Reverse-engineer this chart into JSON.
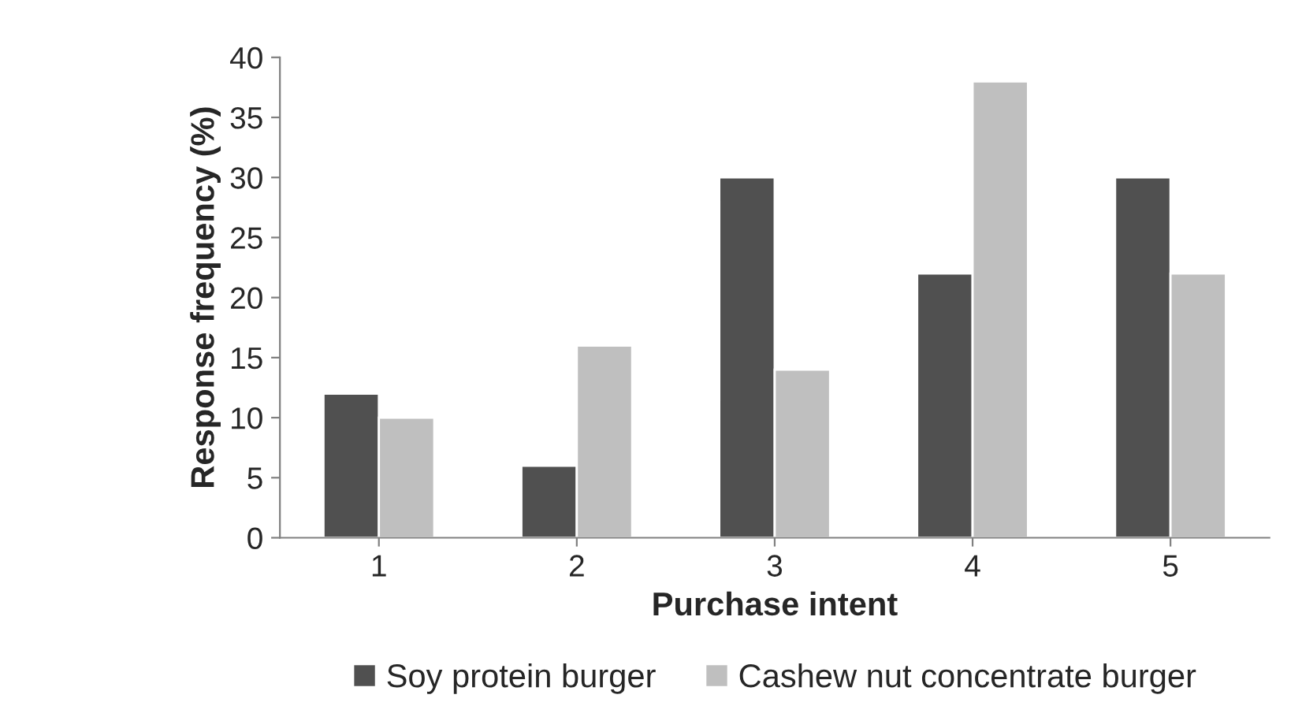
{
  "chart_data": {
    "type": "bar",
    "xlabel": "Purchase intent",
    "ylabel": "Response frequency (%)",
    "categories": [
      "1",
      "2",
      "3",
      "4",
      "5"
    ],
    "series": [
      {
        "name": "Soy protein burger",
        "color": "#505050",
        "values": [
          12,
          6,
          30,
          22,
          30
        ]
      },
      {
        "name": "Cashew nut concentrate burger",
        "color": "#bfbfbf",
        "values": [
          10,
          16,
          14,
          38,
          22
        ]
      }
    ],
    "ylim": [
      0,
      40
    ],
    "yticks": [
      0,
      5,
      10,
      15,
      20,
      25,
      30,
      35,
      40
    ],
    "grid": false,
    "legend": "bottom"
  }
}
